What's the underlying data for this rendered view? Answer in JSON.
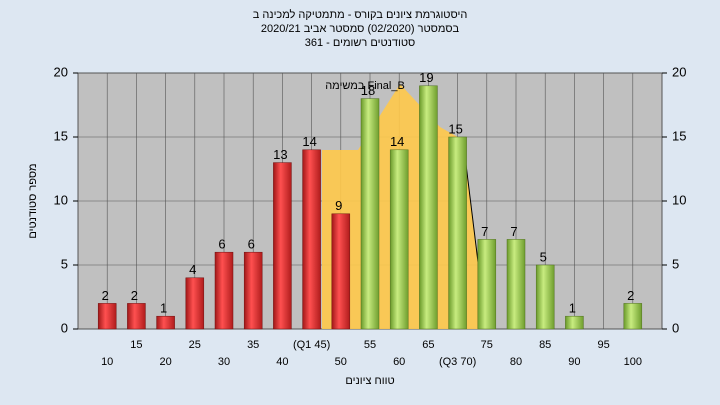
{
  "chart_data": {
    "type": "bar",
    "title": "היסטוגרמת ציונים בקורס - מתמטיקה למכינה ב",
    "subtitle": "בסמסטר  (02/2020)  סמסטר אביב 2020/21",
    "subtitle2": "361 - סטודנטים רשומים",
    "x_label": "טווח ציונים",
    "y_label": "מספר סטודנטים",
    "annotation": "במשימה Final_B",
    "categories": [
      "10",
      "15",
      "20",
      "25",
      "30",
      "35",
      "40",
      "(Q1 45)",
      "50",
      "55",
      "60",
      "65",
      "(Q3 70)",
      "75",
      "80",
      "85",
      "90",
      "95",
      "100"
    ],
    "values": [
      2,
      2,
      1,
      4,
      6,
      6,
      13,
      14,
      9,
      18,
      14,
      19,
      15,
      7,
      7,
      5,
      1,
      null,
      2
    ],
    "colors": {
      "low": "#e03030",
      "high": "#9cc94a"
    },
    "ylim": [
      0,
      20
    ],
    "yticks": [
      0,
      5,
      10,
      15,
      20
    ],
    "y2lim": [
      0,
      20
    ],
    "y2ticks": [
      0,
      5,
      10,
      15,
      20
    ],
    "grid": true
  }
}
